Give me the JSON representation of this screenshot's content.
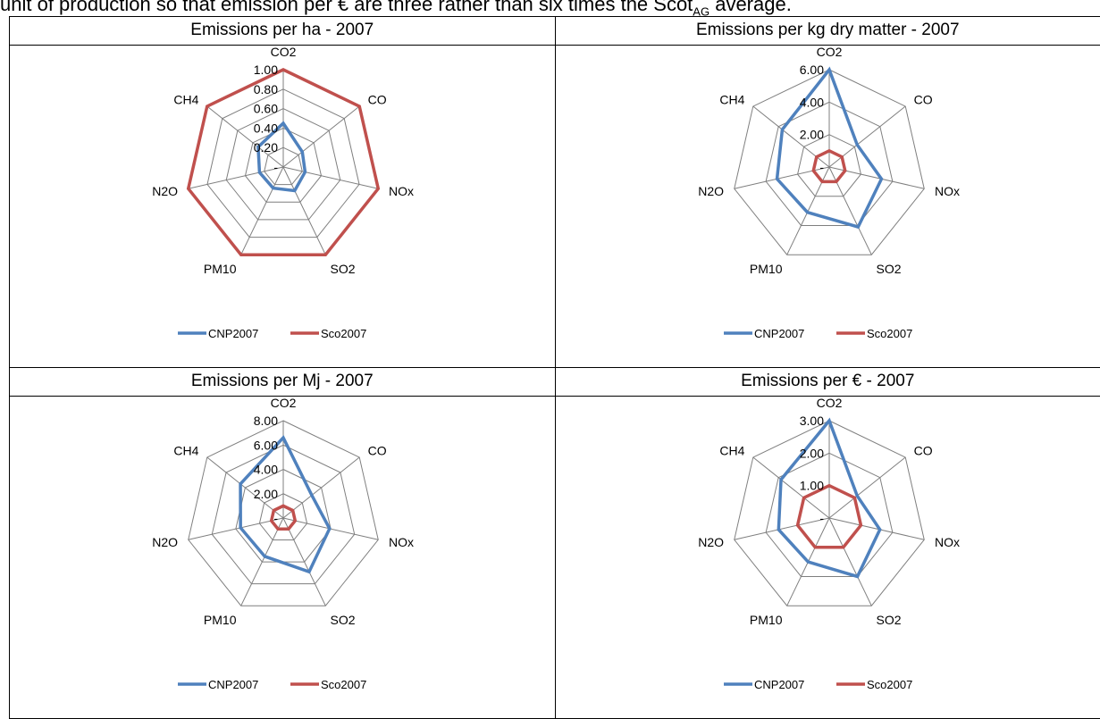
{
  "intro_text": {
    "before": "unit of production so that emission per € are three rather than six times the Scot",
    "sub": "AG",
    "after": " average."
  },
  "colors": {
    "CNP2007": "#4f81bd",
    "Sco2007": "#c0504d",
    "grid": "#7f7f7f"
  },
  "chart_data": [
    {
      "type": "radar",
      "title": "Emissions per ha - 2007",
      "categories": [
        "CO2",
        "CO",
        "NOx",
        "SO2",
        "PM10",
        "N2O",
        "CH4"
      ],
      "tick_labels": [
        "-",
        "0.20",
        "0.40",
        "0.60",
        "0.80",
        "1.00"
      ],
      "ylim": [
        0,
        1
      ],
      "grid": true,
      "legend_position": "bottom",
      "series": [
        {
          "name": "CNP2007",
          "values": [
            0.45,
            0.25,
            0.23,
            0.27,
            0.24,
            0.25,
            0.33
          ]
        },
        {
          "name": "Sco2007",
          "values": [
            1,
            1,
            1,
            1,
            1,
            1,
            1
          ]
        }
      ]
    },
    {
      "type": "radar",
      "title": "Emissions per kg dry matter - 2007",
      "categories": [
        "CO2",
        "CO",
        "NOx",
        "SO2",
        "PM10",
        "N2O",
        "CH4"
      ],
      "tick_labels": [
        "-",
        "2.00",
        "4.00",
        "6.00"
      ],
      "ylim": [
        0,
        6
      ],
      "grid": true,
      "legend_position": "bottom",
      "series": [
        {
          "name": "CNP2007",
          "values": [
            6.0,
            2.2,
            3.3,
            4.1,
            3.1,
            3.3,
            3.7
          ]
        },
        {
          "name": "Sco2007",
          "values": [
            1,
            1,
            1,
            1,
            1,
            1,
            1
          ]
        }
      ]
    },
    {
      "type": "radar",
      "title": "Emissions per Mj - 2007",
      "categories": [
        "CO2",
        "CO",
        "NOx",
        "SO2",
        "PM10",
        "N2O",
        "CH4"
      ],
      "tick_labels": [
        "-",
        "2.00",
        "4.00",
        "6.00",
        "8.00"
      ],
      "ylim": [
        0,
        8
      ],
      "grid": true,
      "legend_position": "bottom",
      "series": [
        {
          "name": "CNP2007",
          "values": [
            6.6,
            3.0,
            3.9,
            4.9,
            3.5,
            3.6,
            4.5
          ]
        },
        {
          "name": "Sco2007",
          "values": [
            1,
            1,
            1,
            1,
            1,
            1,
            1
          ]
        }
      ]
    },
    {
      "type": "radar",
      "title": "Emissions per € - 2007",
      "categories": [
        "CO2",
        "CO",
        "NOx",
        "SO2",
        "PM10",
        "N2O",
        "CH4"
      ],
      "tick_labels": [
        "-",
        "1.00",
        "2.00",
        "3.00"
      ],
      "ylim": [
        0,
        3
      ],
      "grid": true,
      "legend_position": "bottom",
      "series": [
        {
          "name": "CNP2007",
          "values": [
            3.0,
            1.1,
            1.6,
            2.0,
            1.5,
            1.6,
            1.9
          ]
        },
        {
          "name": "Sco2007",
          "values": [
            1,
            1,
            1,
            1,
            1,
            1,
            1
          ]
        }
      ]
    }
  ]
}
